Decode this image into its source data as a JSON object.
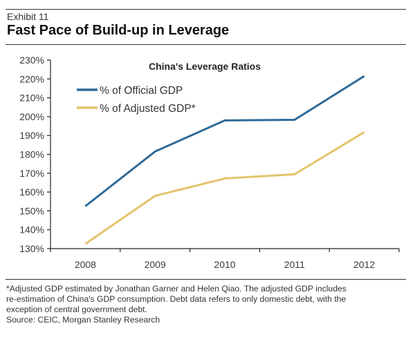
{
  "header": {
    "exhibit": "Exhibit 11",
    "title": "Fast Pace of Build-up in Leverage"
  },
  "colors": {
    "official": "#2e6a98",
    "adjusted": "#e3c36a",
    "axis": "#222222"
  },
  "chart_data": {
    "type": "line",
    "title": "China's Leverage Ratios",
    "xlabel": "",
    "ylabel": "",
    "categories": [
      "2008",
      "2009",
      "2010",
      "2011",
      "2012"
    ],
    "series": [
      {
        "name": "% of Official GDP",
        "color": "#2e6a98",
        "values": [
          152.5,
          181.5,
          198,
          198.3,
          221.5
        ]
      },
      {
        "name": "% of Adjusted GDP*",
        "color": "#e3c36a",
        "values": [
          132.5,
          158,
          167.2,
          169.4,
          191.8
        ]
      }
    ],
    "ylim": [
      130,
      230
    ],
    "yticks": [
      130,
      140,
      150,
      160,
      170,
      180,
      190,
      200,
      210,
      220,
      230
    ],
    "ytick_labels": [
      "130%",
      "140%",
      "150%",
      "160%",
      "170%",
      "180%",
      "190%",
      "200%",
      "210%",
      "220%",
      "230%"
    ],
    "grid": false,
    "legend": "top-left"
  },
  "footnote": {
    "lines": [
      "*Adjusted GDP estimated by Jonathan Garner and Helen Qiao. The adjusted GDP includes",
      "re-estimation of China's GDP consumption. Debt data refers to only domestic debt, with the",
      "exception of central government debt."
    ],
    "source": "Source: CEIC, Morgan Stanley Research"
  }
}
